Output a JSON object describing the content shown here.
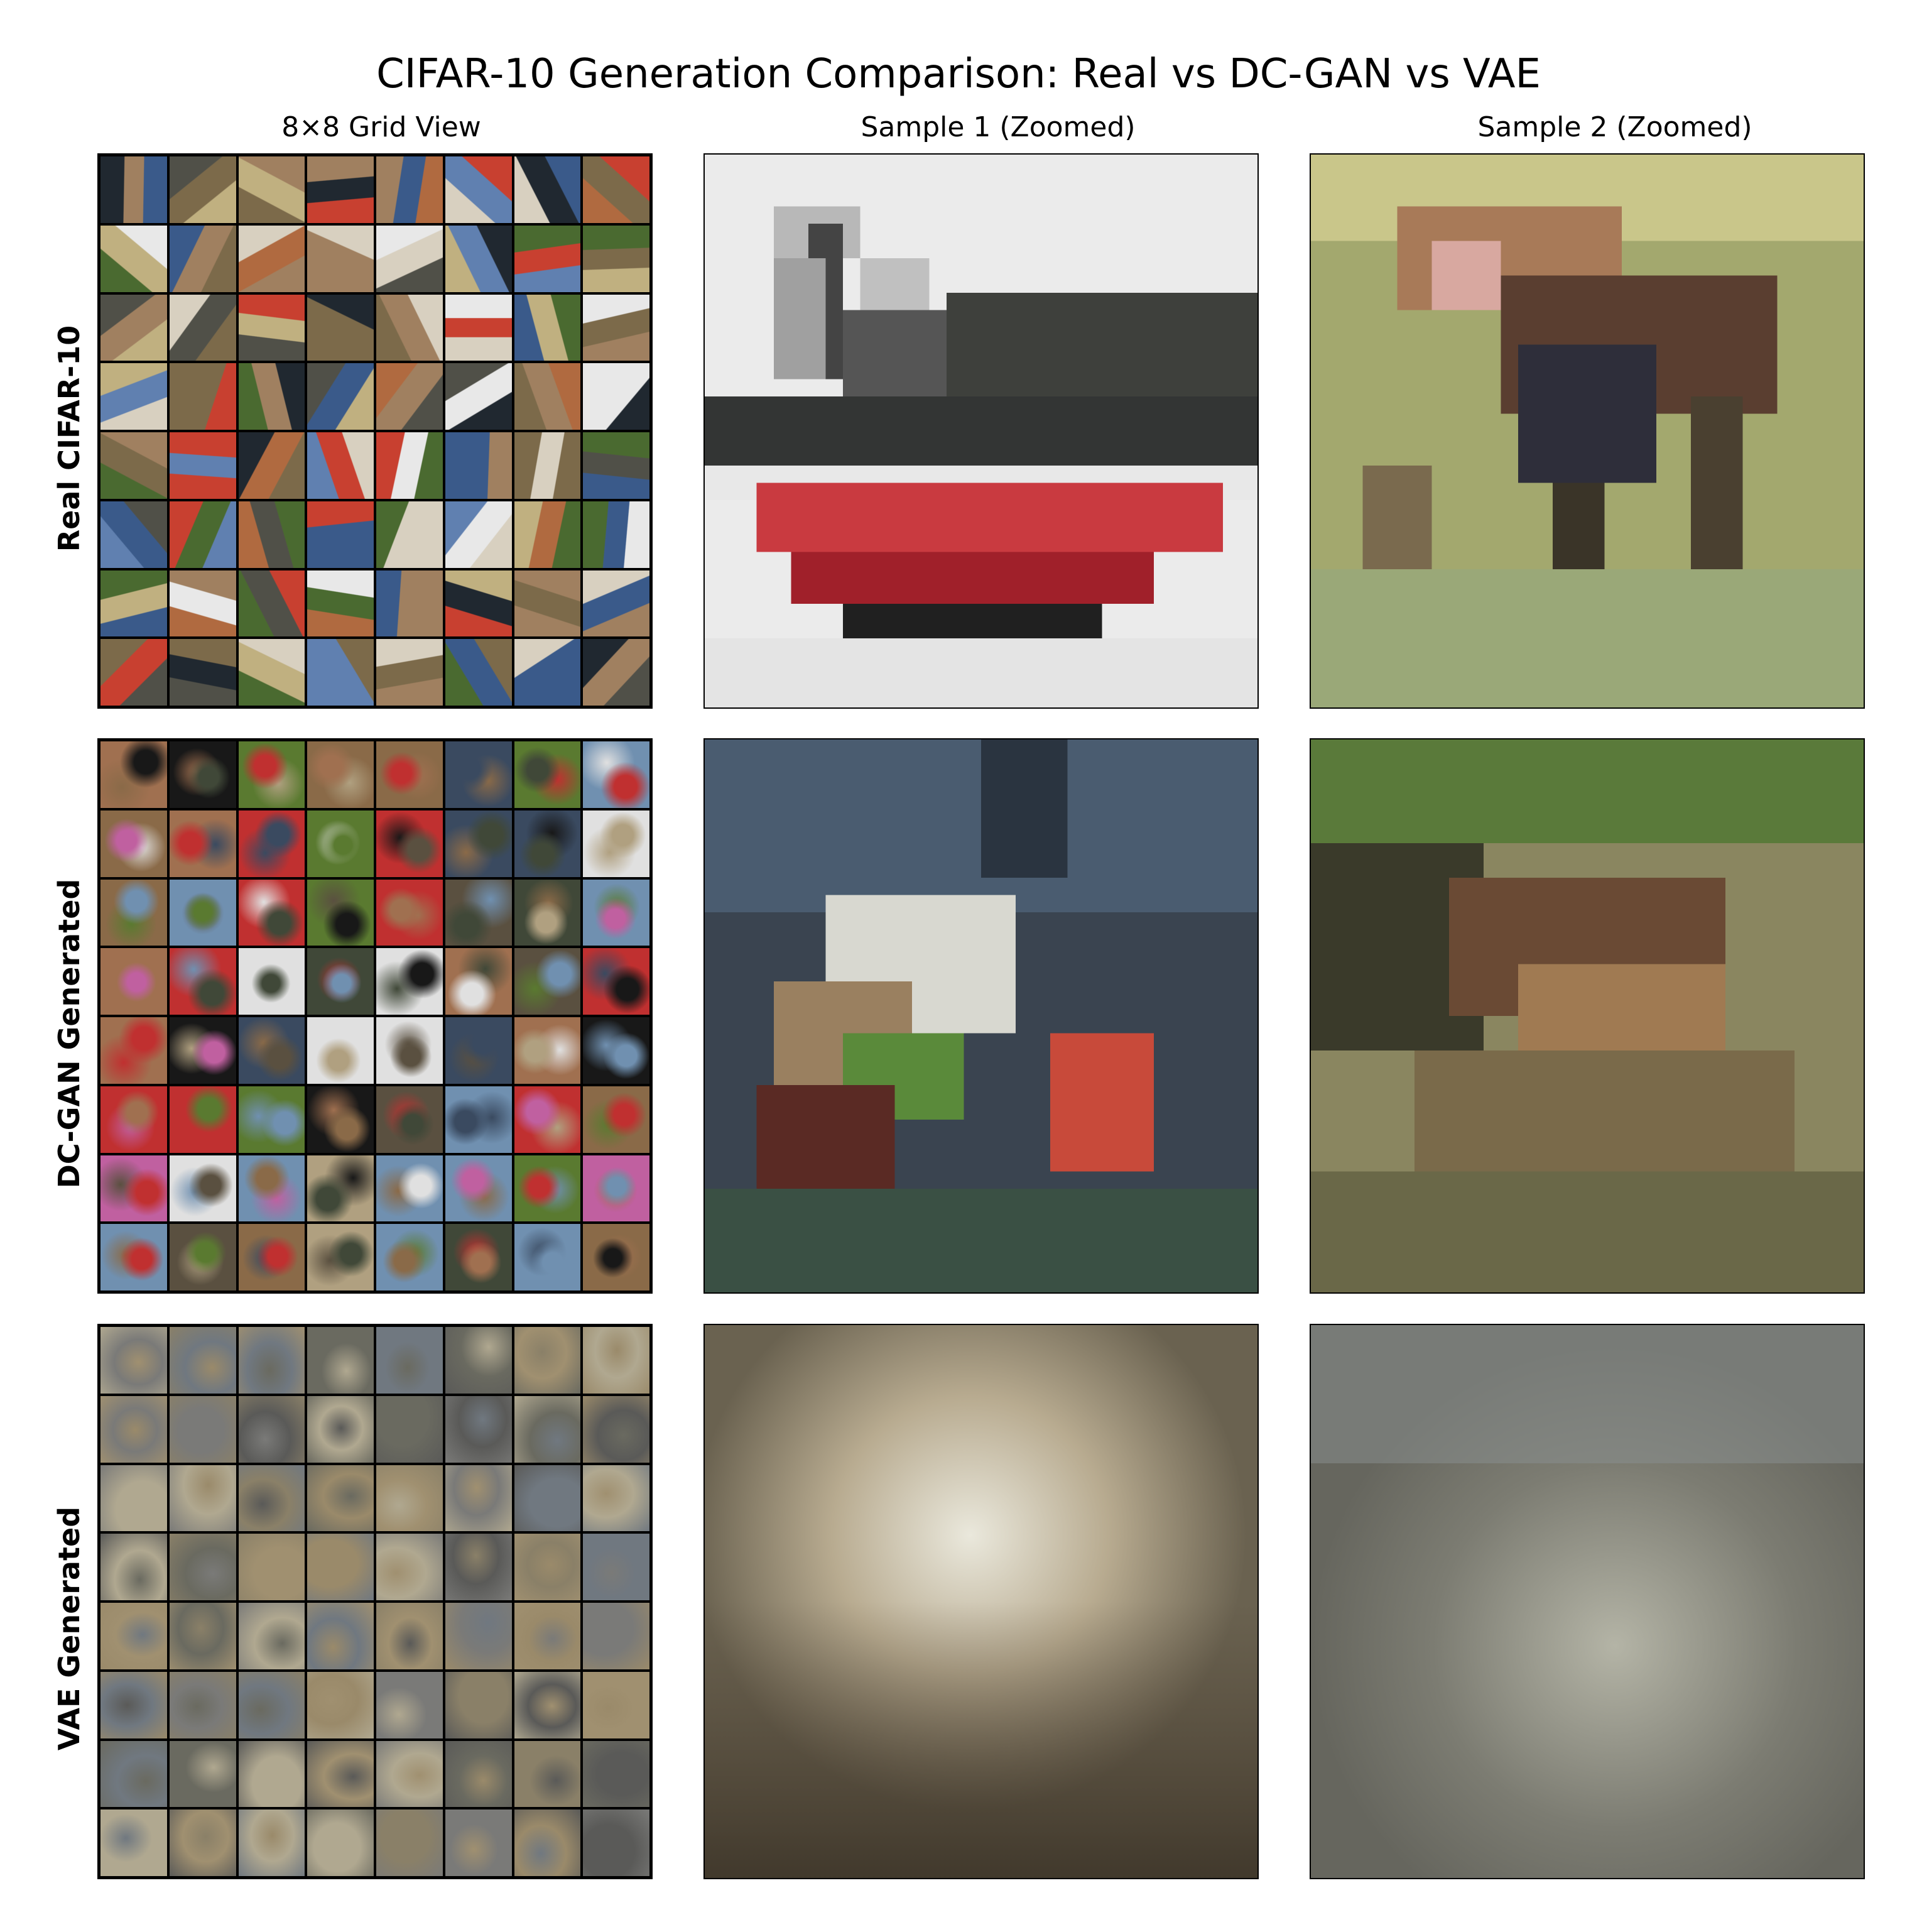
{
  "title": "CIFAR-10 Generation Comparison: Real vs DC-GAN vs VAE",
  "columns": [
    "8×8 Grid View",
    "Sample 1 (Zoomed)",
    "Sample 2 (Zoomed)"
  ],
  "rows": [
    {
      "label": "Real CIFAR-10",
      "grid_style": "sharp",
      "palette": [
        "#7c6a4a",
        "#3a5a8a",
        "#c84030",
        "#d8d0c0",
        "#4a6a30",
        "#a08060",
        "#202830",
        "#c0b080",
        "#6080b0",
        "#e8e8e8",
        "#505048",
        "#b06a40"
      ],
      "sample_1": "red-boat",
      "sample_2": "deer-in-grass"
    },
    {
      "label": "DC-GAN Generated",
      "grid_style": "noisy",
      "palette": [
        "#5a5040",
        "#3a4a60",
        "#c03030",
        "#e0e0e0",
        "#5a7a30",
        "#8a6a48",
        "#181818",
        "#b0a080",
        "#7090b0",
        "#c060a0",
        "#404838",
        "#a07050"
      ],
      "sample_1": "blurry-scene",
      "sample_2": "frog-like"
    },
    {
      "label": "VAE Generated",
      "grid_style": "blurry",
      "palette": [
        "#8a8068",
        "#6a6a60",
        "#9a8a6a",
        "#7a7a78",
        "#a09070",
        "#5a5a58",
        "#b0a890",
        "#707880"
      ],
      "sample_1": "blur-warm",
      "sample_2": "blur-gray"
    }
  ]
}
